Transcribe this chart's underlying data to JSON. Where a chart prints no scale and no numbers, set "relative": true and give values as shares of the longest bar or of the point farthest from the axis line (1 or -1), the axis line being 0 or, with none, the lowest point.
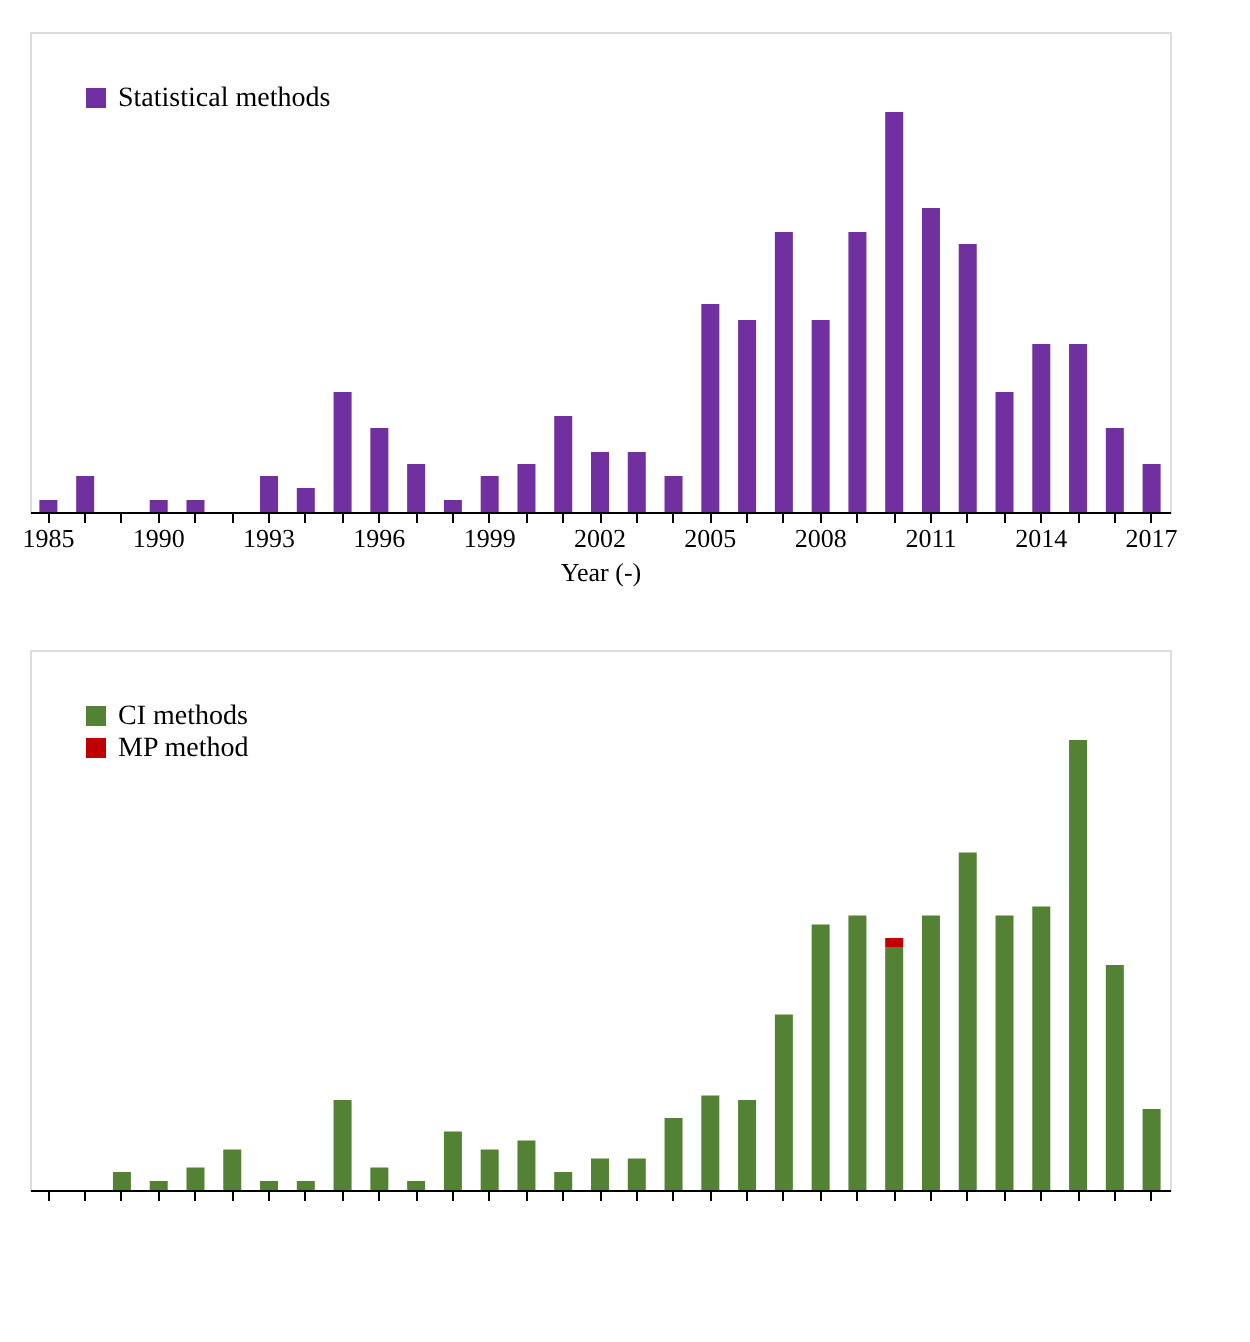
{
  "chart_data": [
    {
      "type": "bar",
      "relative": true,
      "xlabel": "Year (-)",
      "legend": "top left",
      "tick_labels": "x",
      "stacked": true,
      "categories": [
        "1985",
        null,
        null,
        "1990",
        null,
        null,
        "1993",
        null,
        null,
        "1996",
        null,
        null,
        "1999",
        null,
        null,
        "2002",
        null,
        null,
        "2005",
        null,
        null,
        "2008",
        null,
        null,
        "2011",
        null,
        null,
        "2014",
        null,
        null,
        "2017"
      ],
      "series": [
        {
          "name": "Statistical methods",
          "color": "#7030a0",
          "values": [
            0.03,
            0.09,
            0,
            0.03,
            0.03,
            0,
            0.09,
            0.06,
            0.3,
            0.21,
            0.12,
            0.03,
            0.09,
            0.12,
            0.24,
            0.15,
            0.15,
            0.09,
            0.52,
            0.48,
            0.7,
            0.48,
            0.7,
            1,
            0.76,
            0.67,
            0.3,
            0.42,
            0.42,
            0.21,
            0.12
          ]
        }
      ]
    },
    {
      "type": "bar",
      "relative": true,
      "legend": "top left",
      "tick_labels": false,
      "stacked": true,
      "categories": [
        null,
        null,
        null,
        null,
        null,
        null,
        null,
        null,
        null,
        null,
        null,
        null,
        null,
        null,
        null,
        null,
        null,
        null,
        null,
        null,
        null,
        null,
        null,
        null,
        null,
        null,
        null,
        null,
        null,
        null,
        null
      ],
      "series": [
        {
          "name": "CI  methods",
          "color": "#548235",
          "values": [
            0,
            0,
            0.04,
            0.02,
            0.05,
            0.09,
            0.02,
            0.02,
            0.2,
            0.05,
            0.02,
            0.13,
            0.09,
            0.11,
            0.04,
            0.07,
            0.07,
            0.16,
            0.21,
            0.2,
            0.39,
            0.59,
            0.61,
            0.54,
            0.61,
            0.75,
            0.61,
            0.63,
            1,
            0.5,
            0.18
          ]
        },
        {
          "name": "MP method",
          "color": "#c00000",
          "values": [
            0,
            0,
            0,
            0,
            0,
            0,
            0,
            0,
            0,
            0,
            0,
            0,
            0,
            0,
            0,
            0,
            0,
            0,
            0,
            0,
            0,
            0,
            0,
            0.02,
            0,
            0,
            0,
            0,
            0,
            0,
            0
          ]
        }
      ]
    }
  ]
}
